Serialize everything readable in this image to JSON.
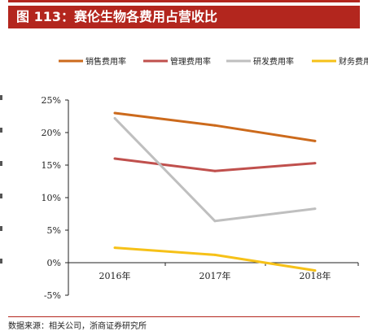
{
  "header": {
    "title": "图 113：赛伦生物各费用占营收比"
  },
  "footer": {
    "source": "数据来源：相关公司，浙商证券研究所"
  },
  "colors": {
    "accent": "#b3261e",
    "series": [
      "#cc6a1c",
      "#c0504d",
      "#bfbfbf",
      "#f6c118"
    ]
  },
  "chart_data": {
    "type": "line",
    "title": "",
    "xlabel": "",
    "ylabel": "",
    "categories": [
      "2016年",
      "2017年",
      "2018年"
    ],
    "ylim": [
      -5,
      25
    ],
    "yticks": [
      "25%",
      "20%",
      "15%",
      "10%",
      "5%",
      "0%",
      "-5%"
    ],
    "grid": false,
    "legend_position": "top",
    "series": [
      {
        "name": "销售费用率",
        "values": [
          23.0,
          21.1,
          18.7
        ]
      },
      {
        "name": "管理费用率",
        "values": [
          16.0,
          14.1,
          15.3
        ]
      },
      {
        "name": "研发费用率",
        "values": [
          22.2,
          6.4,
          8.3
        ]
      },
      {
        "name": "财务费用率",
        "values": [
          2.3,
          1.2,
          -1.2
        ]
      }
    ]
  }
}
